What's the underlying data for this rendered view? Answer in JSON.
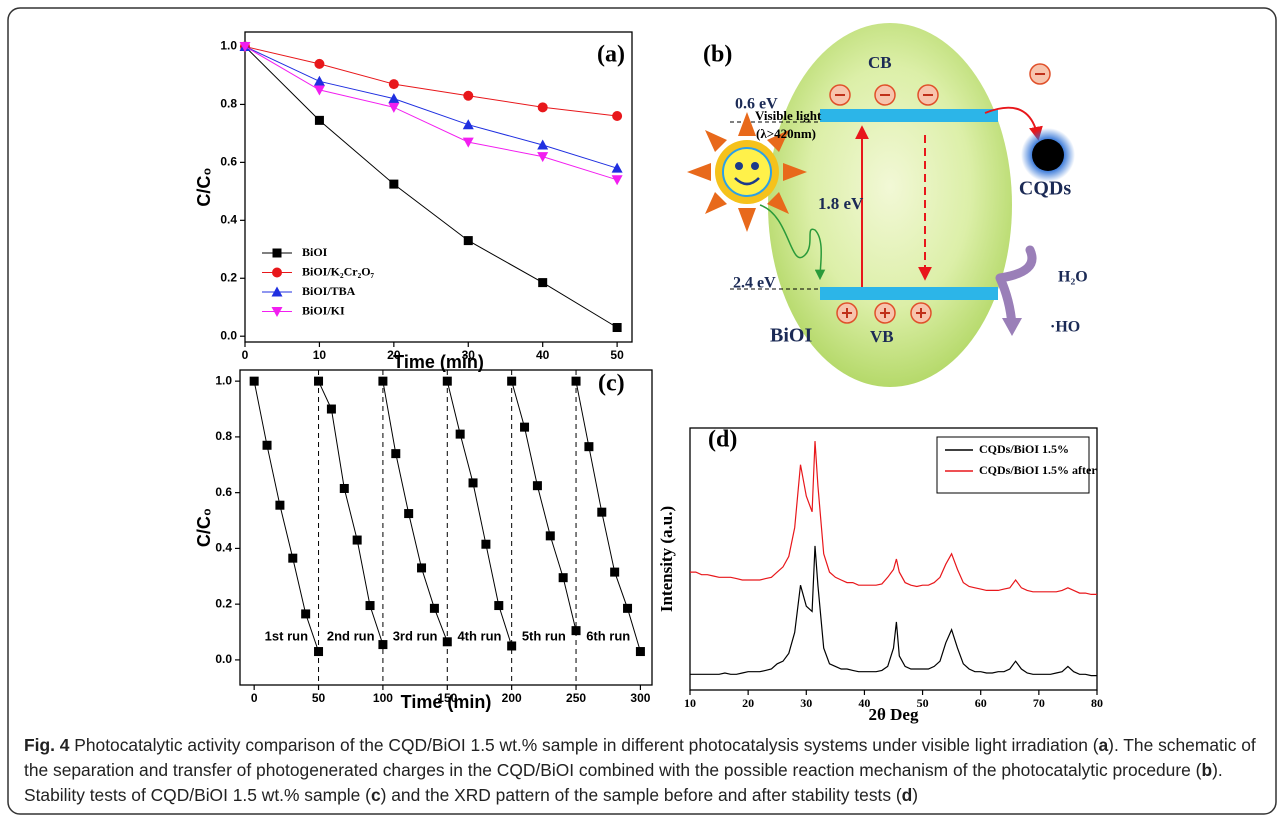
{
  "chart_data": [
    {
      "type": "line",
      "panel_label": "(a)",
      "x_label": "Time (min)",
      "y_label": "C/C₀",
      "x": [
        0,
        10,
        20,
        30,
        40,
        50
      ],
      "series": [
        {
          "name": "BiOI",
          "color": "#000000",
          "marker": "square",
          "values": [
            1.0,
            0.745,
            0.525,
            0.33,
            0.185,
            0.03
          ]
        },
        {
          "name": "BiOI/K₂Cr₂O₇",
          "color": "#e8171b",
          "marker": "circle",
          "values": [
            1.0,
            0.94,
            0.87,
            0.83,
            0.79,
            0.76
          ]
        },
        {
          "name": "BiOI/TBA",
          "color": "#1f2fe0",
          "marker": "triangle-up",
          "values": [
            1.0,
            0.88,
            0.82,
            0.73,
            0.66,
            0.58
          ]
        },
        {
          "name": "BiOI/KI",
          "color": "#f21ef0",
          "marker": "triangle-down",
          "values": [
            1.0,
            0.85,
            0.79,
            0.67,
            0.62,
            0.54
          ]
        }
      ],
      "xlim": [
        0,
        52
      ],
      "ylim": [
        -0.02,
        1.05
      ],
      "xticks": [
        0,
        10,
        20,
        30,
        40,
        50
      ],
      "yticks": [
        {
          "value": 0,
          "label": "0.0"
        },
        0.2,
        0.4,
        0.6,
        0.8,
        {
          "value": 1,
          "label": "1.0"
        }
      ],
      "legend": "lower left"
    },
    {
      "type": "line",
      "panel_label": "(c)",
      "x_label": "Time (min)",
      "y_label": "C/C₀",
      "series": [
        {
          "name": "1st run",
          "color": "#000000",
          "marker": "square",
          "x": [
            0,
            10,
            20,
            30,
            40,
            50
          ],
          "values": [
            1.0,
            0.77,
            0.555,
            0.365,
            0.165,
            0.03
          ]
        },
        {
          "name": "2nd run",
          "color": "#000000",
          "marker": "square",
          "x": [
            50,
            60,
            70,
            80,
            90,
            100
          ],
          "values": [
            1.0,
            0.9,
            0.615,
            0.43,
            0.195,
            0.055
          ]
        },
        {
          "name": "3rd run",
          "color": "#000000",
          "marker": "square",
          "x": [
            100,
            110,
            120,
            130,
            140,
            150
          ],
          "values": [
            1.0,
            0.74,
            0.525,
            0.33,
            0.185,
            0.065
          ]
        },
        {
          "name": "4th run",
          "color": "#000000",
          "marker": "square",
          "x": [
            150,
            160,
            170,
            180,
            190,
            200
          ],
          "values": [
            1.0,
            0.81,
            0.635,
            0.415,
            0.195,
            0.05
          ]
        },
        {
          "name": "5th run",
          "color": "#000000",
          "marker": "square",
          "x": [
            200,
            210,
            220,
            230,
            240,
            250
          ],
          "values": [
            1.0,
            0.835,
            0.625,
            0.445,
            0.295,
            0.105
          ]
        },
        {
          "name": "6th run",
          "color": "#000000",
          "marker": "square",
          "x": [
            250,
            260,
            270,
            280,
            290,
            300
          ],
          "values": [
            1.0,
            0.765,
            0.53,
            0.315,
            0.185,
            0.03
          ]
        }
      ],
      "vlines": [
        50,
        100,
        150,
        200,
        250
      ],
      "xlim": [
        -11,
        309
      ],
      "ylim": [
        -0.09,
        1.04
      ],
      "xticks": [
        0,
        50,
        100,
        150,
        200,
        250,
        300
      ],
      "yticks": [
        {
          "value": 0,
          "label": "0.0"
        },
        0.2,
        0.4,
        0.6,
        0.8,
        {
          "value": 1,
          "label": "1.0"
        }
      ]
    },
    {
      "type": "line",
      "panel_label": "(d)",
      "x_label": "2θ Deg",
      "y_label": "Intensity (a.u.)",
      "x": [
        10,
        11,
        12,
        13,
        14,
        15,
        16,
        17,
        18,
        19,
        20,
        21,
        22,
        23,
        24,
        25,
        26,
        27,
        28,
        29,
        30,
        31,
        31.5,
        32,
        33,
        34,
        35,
        36,
        37,
        38,
        39,
        40,
        41,
        42,
        43,
        44,
        45,
        45.5,
        46,
        47,
        48,
        49,
        50,
        51,
        52,
        53,
        54,
        55,
        56,
        57,
        58,
        59,
        60,
        61,
        62,
        63,
        64,
        65,
        66,
        67,
        68,
        69,
        70,
        71,
        72,
        73,
        74,
        75,
        76,
        77,
        78,
        79,
        80
      ],
      "series": [
        {
          "name": "CQDs/BiOI 1.5%",
          "color": "#000000",
          "values": [
            6,
            6,
            6,
            6,
            6,
            6,
            6.5,
            6,
            6,
            6.5,
            7,
            7,
            7,
            7.5,
            8,
            10,
            11,
            14,
            22,
            40,
            32,
            30,
            55,
            40,
            16,
            10,
            9,
            8,
            8,
            7.5,
            7,
            7,
            7,
            7,
            7.5,
            9,
            16,
            26,
            13,
            9,
            8,
            8,
            8,
            8,
            9,
            11,
            18,
            23,
            16,
            10,
            8,
            7,
            7,
            6.5,
            6.5,
            7,
            7,
            8,
            11,
            8,
            6.5,
            6,
            6,
            6,
            6,
            6.5,
            7,
            9,
            7,
            6,
            6,
            5.5,
            5.5
          ]
        },
        {
          "name": "CQDs/BiOI 1.5% after",
          "color": "#e8171b",
          "values": [
            45,
            45,
            44,
            44,
            43.5,
            43,
            43,
            43,
            42.5,
            42,
            42,
            42,
            42,
            42.5,
            43,
            45,
            47,
            51,
            62,
            86,
            74,
            68,
            95,
            78,
            52,
            45,
            43,
            42,
            41,
            41,
            40,
            40,
            40,
            40,
            40.5,
            43,
            46,
            50,
            45,
            41,
            40,
            39.5,
            40,
            40,
            41,
            43,
            48,
            52,
            46,
            41,
            39.5,
            39,
            38.5,
            38,
            38,
            38,
            38.5,
            39,
            42,
            39,
            38,
            37.5,
            37.5,
            37.5,
            37.5,
            37.5,
            38,
            39,
            38,
            37,
            37,
            36.5,
            36.5
          ]
        }
      ],
      "xlim": [
        10,
        80
      ],
      "ylim": [
        0,
        100
      ],
      "xticks": [
        10,
        20,
        30,
        40,
        50,
        60,
        70,
        80
      ],
      "legend": "upper right"
    }
  ],
  "diagram": {
    "panel_label": "(b)",
    "cb": "CB",
    "cb_potential": "0.6 eV",
    "light": "Visible light",
    "wavelength": "(λ>420nm)",
    "cqds": "CQDs",
    "gap": "1.8 eV",
    "h2o": "H₂O",
    "vb_potential": "2.4 eV",
    "semiconductor": "BiOI",
    "vb": "VB",
    "ho": "·HO"
  },
  "caption": [
    {
      "text": "Fig. 4",
      "bold": true
    },
    {
      "text": " Photocatalytic activity comparison of the CQD/BiOI 1.5 wt.% sample in different photocatalysis systems under visible light irradiation (",
      "bold": false
    },
    {
      "text": "a",
      "bold": true
    },
    {
      "text": "). The schematic of the separation and transfer of photogenerated charges in the CQD/BiOI combined with the possible reaction mechanism of the photocatalytic procedure (",
      "bold": false
    },
    {
      "text": "b",
      "bold": true
    },
    {
      "text": "). Stability tests of CQD/BiOI 1.5 wt.% sample (",
      "bold": false
    },
    {
      "text": "c",
      "bold": true
    },
    {
      "text": ") and the XRD pattern of the sample before and after stability tests (",
      "bold": false
    },
    {
      "text": "d",
      "bold": true
    },
    {
      "text": ")",
      "bold": false
    }
  ]
}
